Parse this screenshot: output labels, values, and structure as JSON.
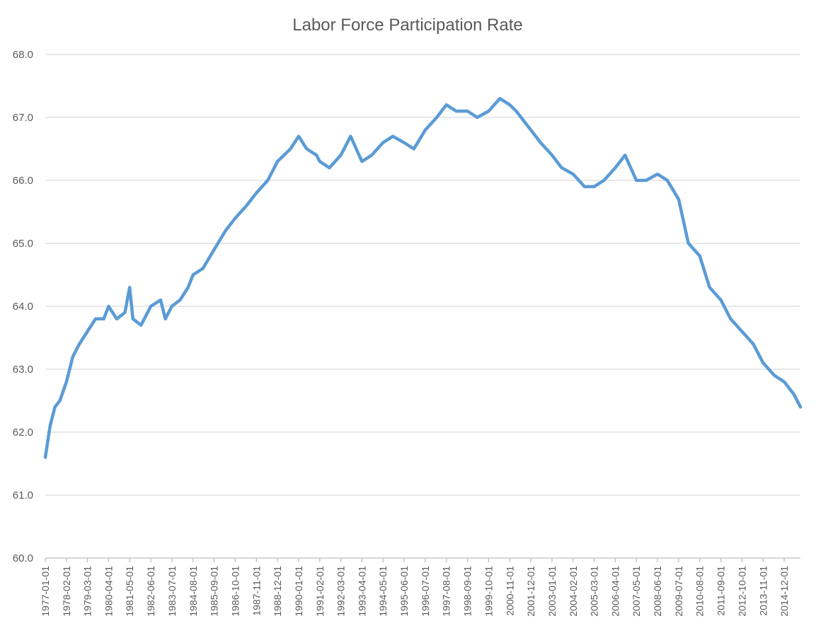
{
  "chart_data": {
    "type": "line",
    "title": "Labor Force Participation Rate",
    "xlabel": "",
    "ylabel": "",
    "ylim": [
      60.0,
      68.0
    ],
    "y_ticks": [
      "60.0",
      "61.0",
      "62.0",
      "63.0",
      "64.0",
      "65.0",
      "66.0",
      "67.0",
      "68.0"
    ],
    "x_ticks": [
      "1977-01-01",
      "1978-02-01",
      "1979-03-01",
      "1980-04-01",
      "1981-05-01",
      "1982-06-01",
      "1983-07-01",
      "1984-08-01",
      "1985-09-01",
      "1986-10-01",
      "1987-11-01",
      "1988-12-01",
      "1990-01-01",
      "1991-02-01",
      "1992-03-01",
      "1993-04-01",
      "1994-05-01",
      "1995-06-01",
      "1996-07-01",
      "1997-08-01",
      "1998-09-01",
      "1999-10-01",
      "2000-11-01",
      "2001-12-01",
      "2003-01-01",
      "2004-02-01",
      "2005-03-01",
      "2006-04-01",
      "2007-05-01",
      "2008-06-01",
      "2009-07-01",
      "2010-08-01",
      "2011-09-01",
      "2012-10-01",
      "2013-11-01",
      "2014-12-01"
    ],
    "grid": true,
    "legend": "none",
    "color": "#5b9bd5",
    "series": [
      {
        "x": [
          "1977-01-01",
          "1977-04-01",
          "1977-07-01",
          "1977-10-01",
          "1978-02-01",
          "1978-06-01",
          "1978-10-01",
          "1979-03-01",
          "1979-08-01",
          "1980-01-01",
          "1980-04-01",
          "1980-09-01",
          "1981-02-01",
          "1981-05-01",
          "1981-07-01",
          "1981-12-01",
          "1982-06-01",
          "1982-12-01",
          "1983-03-01",
          "1983-07-01",
          "1983-12-01",
          "1984-05-01",
          "1984-08-01",
          "1985-02-01",
          "1985-09-01",
          "1986-04-01",
          "1986-10-01",
          "1987-05-01",
          "1987-11-01",
          "1988-06-01",
          "1988-12-01",
          "1989-08-01",
          "1990-01-01",
          "1990-06-01",
          "1990-12-01",
          "1991-02-01",
          "1991-08-01",
          "1992-03-01",
          "1992-09-01",
          "1993-04-01",
          "1993-10-01",
          "1994-05-01",
          "1994-11-01",
          "1995-06-01",
          "1995-12-01",
          "1996-07-01",
          "1997-02-01",
          "1997-08-01",
          "1998-02-01",
          "1998-09-01",
          "1999-03-01",
          "1999-10-01",
          "2000-05-01",
          "2000-11-01",
          "2001-03-01",
          "2001-12-01",
          "2002-06-01",
          "2003-01-01",
          "2003-07-01",
          "2004-02-01",
          "2004-09-01",
          "2005-03-01",
          "2005-09-01",
          "2006-04-01",
          "2006-10-01",
          "2007-05-01",
          "2007-11-01",
          "2008-06-01",
          "2008-12-01",
          "2009-07-01",
          "2010-01-01",
          "2010-08-01",
          "2011-02-01",
          "2011-09-01",
          "2012-03-01",
          "2012-10-01",
          "2013-05-01",
          "2013-11-01",
          "2014-06-01",
          "2014-12-01",
          "2015-06-01",
          "2015-10-01"
        ],
        "values": [
          61.6,
          62.1,
          62.4,
          62.5,
          62.8,
          63.2,
          63.4,
          63.6,
          63.8,
          63.8,
          64.0,
          63.8,
          63.9,
          64.3,
          63.8,
          63.7,
          64.0,
          64.1,
          63.8,
          64.0,
          64.1,
          64.3,
          64.5,
          64.6,
          64.9,
          65.2,
          65.4,
          65.6,
          65.8,
          66.0,
          66.3,
          66.5,
          66.7,
          66.5,
          66.4,
          66.3,
          66.2,
          66.4,
          66.7,
          66.3,
          66.4,
          66.6,
          66.7,
          66.6,
          66.5,
          66.8,
          67.0,
          67.2,
          67.1,
          67.1,
          67.0,
          67.1,
          67.3,
          67.2,
          67.1,
          66.8,
          66.6,
          66.4,
          66.2,
          66.1,
          65.9,
          65.9,
          66.0,
          66.2,
          66.4,
          66.0,
          66.0,
          66.1,
          66.0,
          65.7,
          65.0,
          64.8,
          64.3,
          64.1,
          63.8,
          63.6,
          63.4,
          63.1,
          62.9,
          62.8,
          62.6,
          62.4
        ]
      }
    ]
  }
}
